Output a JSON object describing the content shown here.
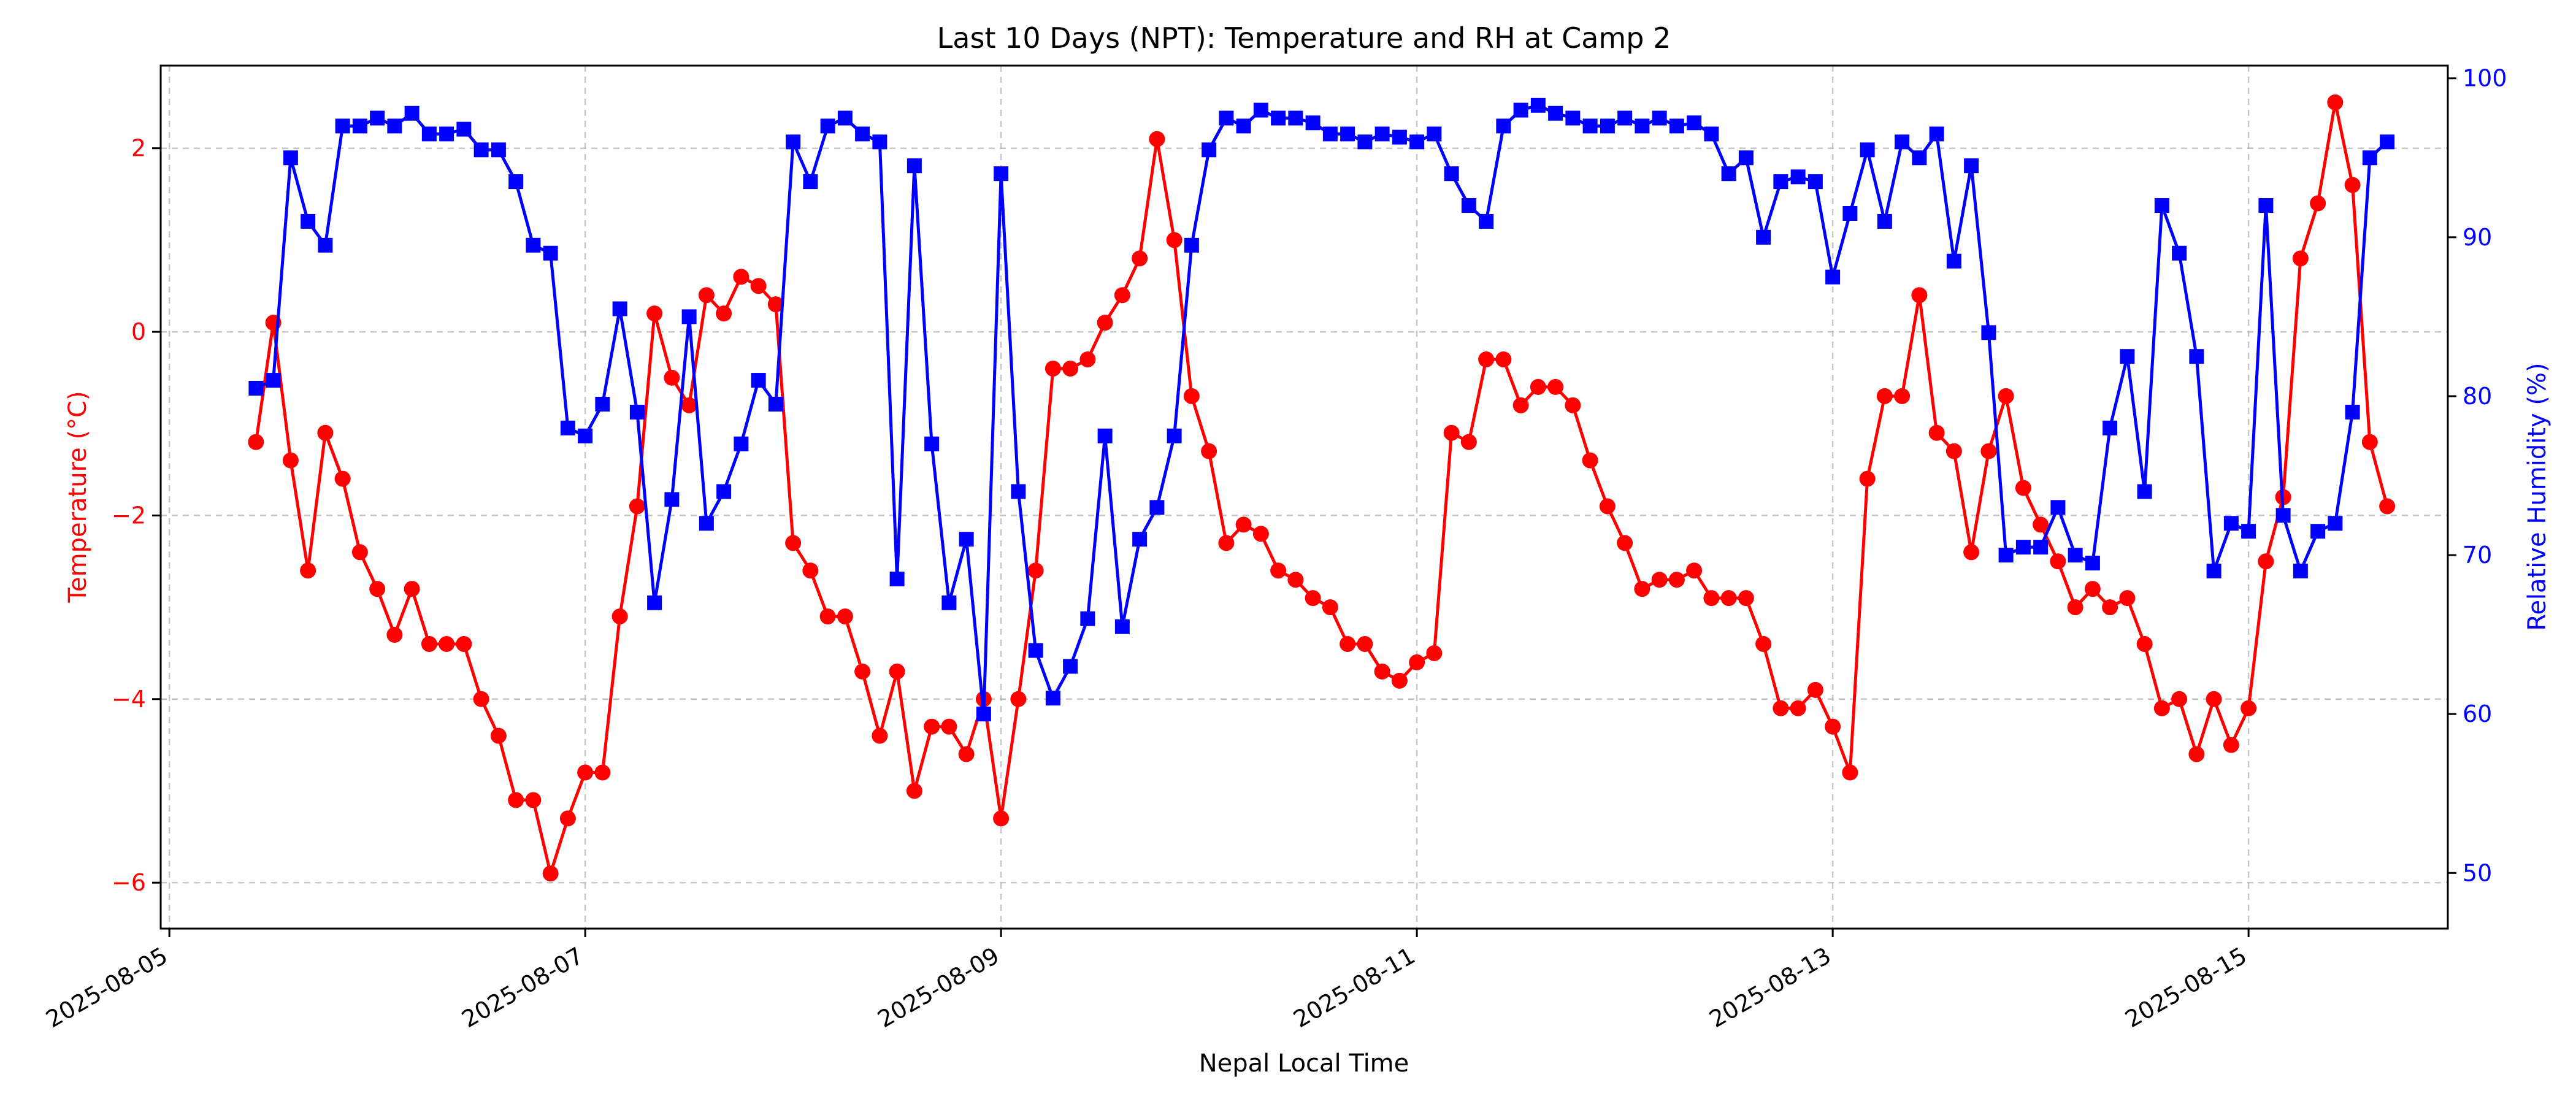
{
  "chart_data": {
    "type": "line",
    "title": "Last 10 Days (NPT): Temperature and RH at Camp 2",
    "xlabel": "Nepal Local Time",
    "ylabel_left": "Temperature (°C)",
    "ylabel_right": "Relative Humidity (%)",
    "colors": {
      "temperature": "#ff0000",
      "humidity": "#0000ff"
    },
    "grid": true,
    "x_ticks": [
      "2025-08-05",
      "2025-08-07",
      "2025-08-09",
      "2025-08-11",
      "2025-08-13",
      "2025-08-15"
    ],
    "x_range": [
      "2025-08-04 23:00",
      "2025-08-15 23:00"
    ],
    "y_left_range": [
      -6.5,
      2.9
    ],
    "y_left_ticks": [
      -6,
      -4,
      -2,
      0,
      2
    ],
    "y_right_range": [
      46.5,
      100.8
    ],
    "y_right_ticks": [
      50,
      60,
      70,
      80,
      90,
      100
    ],
    "series": [
      {
        "axis": "left",
        "marker": "circle",
        "points": [
          [
            "2025-08-05 10:00",
            -1.2
          ],
          [
            "2025-08-05 12:00",
            0.1
          ],
          [
            "2025-08-05 14:00",
            -1.4
          ],
          [
            "2025-08-05 16:00",
            -2.6
          ],
          [
            "2025-08-05 18:00",
            -1.1
          ],
          [
            "2025-08-05 20:00",
            -1.6
          ],
          [
            "2025-08-05 22:00",
            -2.4
          ],
          [
            "2025-08-06 00:00",
            -2.8
          ],
          [
            "2025-08-06 02:00",
            -3.3
          ],
          [
            "2025-08-06 04:00",
            -2.8
          ],
          [
            "2025-08-06 06:00",
            -3.4
          ],
          [
            "2025-08-06 08:00",
            -3.4
          ],
          [
            "2025-08-06 10:00",
            -3.4
          ],
          [
            "2025-08-06 12:00",
            -4.0
          ],
          [
            "2025-08-06 14:00",
            -4.4
          ],
          [
            "2025-08-06 16:00",
            -5.1
          ],
          [
            "2025-08-06 18:00",
            -5.1
          ],
          [
            "2025-08-06 20:00",
            -5.9
          ],
          [
            "2025-08-06 22:00",
            -5.3
          ],
          [
            "2025-08-07 00:00",
            -4.8
          ],
          [
            "2025-08-07 02:00",
            -4.8
          ],
          [
            "2025-08-07 04:00",
            -3.1
          ],
          [
            "2025-08-07 06:00",
            -1.9
          ],
          [
            "2025-08-07 08:00",
            0.2
          ],
          [
            "2025-08-07 10:00",
            -0.5
          ],
          [
            "2025-08-07 12:00",
            -0.8
          ],
          [
            "2025-08-07 14:00",
            0.4
          ],
          [
            "2025-08-07 16:00",
            0.2
          ],
          [
            "2025-08-07 18:00",
            0.6
          ],
          [
            "2025-08-07 20:00",
            0.5
          ],
          [
            "2025-08-07 22:00",
            0.3
          ],
          [
            "2025-08-08 00:00",
            -2.3
          ],
          [
            "2025-08-08 02:00",
            -2.6
          ],
          [
            "2025-08-08 04:00",
            -3.1
          ],
          [
            "2025-08-08 06:00",
            -3.1
          ],
          [
            "2025-08-08 08:00",
            -3.7
          ],
          [
            "2025-08-08 10:00",
            -4.4
          ],
          [
            "2025-08-08 12:00",
            -3.7
          ],
          [
            "2025-08-08 14:00",
            -5.0
          ],
          [
            "2025-08-08 16:00",
            -4.3
          ],
          [
            "2025-08-08 18:00",
            -4.3
          ],
          [
            "2025-08-08 20:00",
            -4.6
          ],
          [
            "2025-08-08 22:00",
            -4.0
          ],
          [
            "2025-08-09 00:00",
            -5.3
          ],
          [
            "2025-08-09 02:00",
            -4.0
          ],
          [
            "2025-08-09 04:00",
            -2.6
          ],
          [
            "2025-08-09 06:00",
            -0.4
          ],
          [
            "2025-08-09 08:00",
            -0.4
          ],
          [
            "2025-08-09 10:00",
            -0.3
          ],
          [
            "2025-08-09 12:00",
            0.1
          ],
          [
            "2025-08-09 14:00",
            0.4
          ],
          [
            "2025-08-09 16:00",
            0.8
          ],
          [
            "2025-08-09 18:00",
            2.1
          ],
          [
            "2025-08-09 20:00",
            1.0
          ],
          [
            "2025-08-09 22:00",
            -0.7
          ],
          [
            "2025-08-10 00:00",
            -1.3
          ],
          [
            "2025-08-10 02:00",
            -2.3
          ],
          [
            "2025-08-10 04:00",
            -2.1
          ],
          [
            "2025-08-10 06:00",
            -2.2
          ],
          [
            "2025-08-10 08:00",
            -2.6
          ],
          [
            "2025-08-10 10:00",
            -2.7
          ],
          [
            "2025-08-10 12:00",
            -2.9
          ],
          [
            "2025-08-10 14:00",
            -3.0
          ],
          [
            "2025-08-10 16:00",
            -3.4
          ],
          [
            "2025-08-10 18:00",
            -3.4
          ],
          [
            "2025-08-10 20:00",
            -3.7
          ],
          [
            "2025-08-10 22:00",
            -3.8
          ],
          [
            "2025-08-11 00:00",
            -3.6
          ],
          [
            "2025-08-11 02:00",
            -3.5
          ],
          [
            "2025-08-11 04:00",
            -1.1
          ],
          [
            "2025-08-11 06:00",
            -1.2
          ],
          [
            "2025-08-11 08:00",
            -0.3
          ],
          [
            "2025-08-11 10:00",
            -0.3
          ],
          [
            "2025-08-11 12:00",
            -0.8
          ],
          [
            "2025-08-11 14:00",
            -0.6
          ],
          [
            "2025-08-11 16:00",
            -0.6
          ],
          [
            "2025-08-11 18:00",
            -0.8
          ],
          [
            "2025-08-11 20:00",
            -1.4
          ],
          [
            "2025-08-11 22:00",
            -1.9
          ],
          [
            "2025-08-12 00:00",
            -2.3
          ],
          [
            "2025-08-12 02:00",
            -2.8
          ],
          [
            "2025-08-12 04:00",
            -2.7
          ],
          [
            "2025-08-12 06:00",
            -2.7
          ],
          [
            "2025-08-12 08:00",
            -2.6
          ],
          [
            "2025-08-12 10:00",
            -2.9
          ],
          [
            "2025-08-12 12:00",
            -2.9
          ],
          [
            "2025-08-12 14:00",
            -2.9
          ],
          [
            "2025-08-12 16:00",
            -3.4
          ],
          [
            "2025-08-12 18:00",
            -4.1
          ],
          [
            "2025-08-12 20:00",
            -4.1
          ],
          [
            "2025-08-12 22:00",
            -3.9
          ],
          [
            "2025-08-13 00:00",
            -4.3
          ],
          [
            "2025-08-13 02:00",
            -4.8
          ],
          [
            "2025-08-13 04:00",
            -1.6
          ],
          [
            "2025-08-13 06:00",
            -0.7
          ],
          [
            "2025-08-13 08:00",
            -0.7
          ],
          [
            "2025-08-13 10:00",
            0.4
          ],
          [
            "2025-08-13 12:00",
            -1.1
          ],
          [
            "2025-08-13 14:00",
            -1.3
          ],
          [
            "2025-08-13 16:00",
            -2.4
          ],
          [
            "2025-08-13 18:00",
            -1.3
          ],
          [
            "2025-08-13 20:00",
            -0.7
          ],
          [
            "2025-08-13 22:00",
            -1.7
          ],
          [
            "2025-08-14 00:00",
            -2.1
          ],
          [
            "2025-08-14 02:00",
            -2.5
          ],
          [
            "2025-08-14 04:00",
            -3.0
          ],
          [
            "2025-08-14 06:00",
            -2.8
          ],
          [
            "2025-08-14 08:00",
            -3.0
          ],
          [
            "2025-08-14 10:00",
            -2.9
          ],
          [
            "2025-08-14 12:00",
            -3.4
          ],
          [
            "2025-08-14 14:00",
            -4.1
          ],
          [
            "2025-08-14 16:00",
            -4.0
          ],
          [
            "2025-08-14 18:00",
            -4.6
          ],
          [
            "2025-08-14 20:00",
            -4.0
          ],
          [
            "2025-08-14 22:00",
            -4.5
          ],
          [
            "2025-08-15 00:00",
            -4.1
          ],
          [
            "2025-08-15 02:00",
            -2.5
          ],
          [
            "2025-08-15 04:00",
            -1.8
          ],
          [
            "2025-08-15 06:00",
            0.8
          ],
          [
            "2025-08-15 08:00",
            1.4
          ],
          [
            "2025-08-15 10:00",
            2.5
          ],
          [
            "2025-08-15 12:00",
            1.6
          ],
          [
            "2025-08-15 14:00",
            -1.2
          ],
          [
            "2025-08-15 16:00",
            -1.9
          ]
        ]
      },
      {
        "axis": "right",
        "marker": "square",
        "points": [
          [
            "2025-08-05 10:00",
            80.5
          ],
          [
            "2025-08-05 12:00",
            81.0
          ],
          [
            "2025-08-05 14:00",
            95.0
          ],
          [
            "2025-08-05 16:00",
            91.0
          ],
          [
            "2025-08-05 18:00",
            89.5
          ],
          [
            "2025-08-05 20:00",
            97.0
          ],
          [
            "2025-08-05 22:00",
            97.0
          ],
          [
            "2025-08-06 00:00",
            97.5
          ],
          [
            "2025-08-06 02:00",
            97.0
          ],
          [
            "2025-08-06 04:00",
            97.8
          ],
          [
            "2025-08-06 06:00",
            96.5
          ],
          [
            "2025-08-06 08:00",
            96.5
          ],
          [
            "2025-08-06 10:00",
            96.8
          ],
          [
            "2025-08-06 12:00",
            95.5
          ],
          [
            "2025-08-06 14:00",
            95.5
          ],
          [
            "2025-08-06 16:00",
            93.5
          ],
          [
            "2025-08-06 18:00",
            89.5
          ],
          [
            "2025-08-06 20:00",
            89.0
          ],
          [
            "2025-08-06 22:00",
            78.0
          ],
          [
            "2025-08-07 00:00",
            77.5
          ],
          [
            "2025-08-07 02:00",
            79.5
          ],
          [
            "2025-08-07 04:00",
            85.5
          ],
          [
            "2025-08-07 06:00",
            79.0
          ],
          [
            "2025-08-07 08:00",
            67.0
          ],
          [
            "2025-08-07 10:00",
            73.5
          ],
          [
            "2025-08-07 12:00",
            85.0
          ],
          [
            "2025-08-07 14:00",
            72.0
          ],
          [
            "2025-08-07 16:00",
            74.0
          ],
          [
            "2025-08-07 18:00",
            77.0
          ],
          [
            "2025-08-07 20:00",
            81.0
          ],
          [
            "2025-08-07 22:00",
            79.5
          ],
          [
            "2025-08-08 00:00",
            96.0
          ],
          [
            "2025-08-08 02:00",
            93.5
          ],
          [
            "2025-08-08 04:00",
            97.0
          ],
          [
            "2025-08-08 06:00",
            97.5
          ],
          [
            "2025-08-08 08:00",
            96.5
          ],
          [
            "2025-08-08 10:00",
            96.0
          ],
          [
            "2025-08-08 12:00",
            68.5
          ],
          [
            "2025-08-08 14:00",
            94.5
          ],
          [
            "2025-08-08 16:00",
            77.0
          ],
          [
            "2025-08-08 18:00",
            67.0
          ],
          [
            "2025-08-08 20:00",
            71.0
          ],
          [
            "2025-08-08 22:00",
            60.0
          ],
          [
            "2025-08-09 00:00",
            94.0
          ],
          [
            "2025-08-09 02:00",
            74.0
          ],
          [
            "2025-08-09 04:00",
            64.0
          ],
          [
            "2025-08-09 06:00",
            61.0
          ],
          [
            "2025-08-09 08:00",
            63.0
          ],
          [
            "2025-08-09 10:00",
            66.0
          ],
          [
            "2025-08-09 12:00",
            77.5
          ],
          [
            "2025-08-09 14:00",
            65.5
          ],
          [
            "2025-08-09 16:00",
            71.0
          ],
          [
            "2025-08-09 18:00",
            73.0
          ],
          [
            "2025-08-09 20:00",
            77.5
          ],
          [
            "2025-08-09 22:00",
            89.5
          ],
          [
            "2025-08-10 00:00",
            95.5
          ],
          [
            "2025-08-10 02:00",
            97.5
          ],
          [
            "2025-08-10 04:00",
            97.0
          ],
          [
            "2025-08-10 06:00",
            98.0
          ],
          [
            "2025-08-10 08:00",
            97.5
          ],
          [
            "2025-08-10 10:00",
            97.5
          ],
          [
            "2025-08-10 12:00",
            97.2
          ],
          [
            "2025-08-10 14:00",
            96.5
          ],
          [
            "2025-08-10 16:00",
            96.5
          ],
          [
            "2025-08-10 18:00",
            96.0
          ],
          [
            "2025-08-10 20:00",
            96.5
          ],
          [
            "2025-08-10 22:00",
            96.3
          ],
          [
            "2025-08-11 00:00",
            96.0
          ],
          [
            "2025-08-11 02:00",
            96.5
          ],
          [
            "2025-08-11 04:00",
            94.0
          ],
          [
            "2025-08-11 06:00",
            92.0
          ],
          [
            "2025-08-11 08:00",
            91.0
          ],
          [
            "2025-08-11 10:00",
            97.0
          ],
          [
            "2025-08-11 12:00",
            98.0
          ],
          [
            "2025-08-11 14:00",
            98.3
          ],
          [
            "2025-08-11 16:00",
            97.8
          ],
          [
            "2025-08-11 18:00",
            97.5
          ],
          [
            "2025-08-11 20:00",
            97.0
          ],
          [
            "2025-08-11 22:00",
            97.0
          ],
          [
            "2025-08-12 00:00",
            97.5
          ],
          [
            "2025-08-12 02:00",
            97.0
          ],
          [
            "2025-08-12 04:00",
            97.5
          ],
          [
            "2025-08-12 06:00",
            97.0
          ],
          [
            "2025-08-12 08:00",
            97.2
          ],
          [
            "2025-08-12 10:00",
            96.5
          ],
          [
            "2025-08-12 12:00",
            94.0
          ],
          [
            "2025-08-12 14:00",
            95.0
          ],
          [
            "2025-08-12 16:00",
            90.0
          ],
          [
            "2025-08-12 18:00",
            93.5
          ],
          [
            "2025-08-12 20:00",
            93.8
          ],
          [
            "2025-08-12 22:00",
            93.5
          ],
          [
            "2025-08-13 00:00",
            87.5
          ],
          [
            "2025-08-13 02:00",
            91.5
          ],
          [
            "2025-08-13 04:00",
            95.5
          ],
          [
            "2025-08-13 06:00",
            91.0
          ],
          [
            "2025-08-13 08:00",
            96.0
          ],
          [
            "2025-08-13 10:00",
            95.0
          ],
          [
            "2025-08-13 12:00",
            96.5
          ],
          [
            "2025-08-13 14:00",
            88.5
          ],
          [
            "2025-08-13 16:00",
            94.5
          ],
          [
            "2025-08-13 18:00",
            84.0
          ],
          [
            "2025-08-13 20:00",
            70.0
          ],
          [
            "2025-08-13 22:00",
            70.5
          ],
          [
            "2025-08-14 00:00",
            70.5
          ],
          [
            "2025-08-14 02:00",
            73.0
          ],
          [
            "2025-08-14 04:00",
            70.0
          ],
          [
            "2025-08-14 06:00",
            69.5
          ],
          [
            "2025-08-14 08:00",
            78.0
          ],
          [
            "2025-08-14 10:00",
            82.5
          ],
          [
            "2025-08-14 12:00",
            74.0
          ],
          [
            "2025-08-14 14:00",
            92.0
          ],
          [
            "2025-08-14 16:00",
            89.0
          ],
          [
            "2025-08-14 18:00",
            82.5
          ],
          [
            "2025-08-14 20:00",
            69.0
          ],
          [
            "2025-08-14 22:00",
            72.0
          ],
          [
            "2025-08-15 00:00",
            71.5
          ],
          [
            "2025-08-15 02:00",
            92.0
          ],
          [
            "2025-08-15 04:00",
            72.5
          ],
          [
            "2025-08-15 06:00",
            69.0
          ],
          [
            "2025-08-15 08:00",
            71.5
          ],
          [
            "2025-08-15 10:00",
            72.0
          ],
          [
            "2025-08-15 12:00",
            79.0
          ],
          [
            "2025-08-15 14:00",
            95.0
          ],
          [
            "2025-08-15 16:00",
            96.0
          ]
        ]
      }
    ]
  }
}
